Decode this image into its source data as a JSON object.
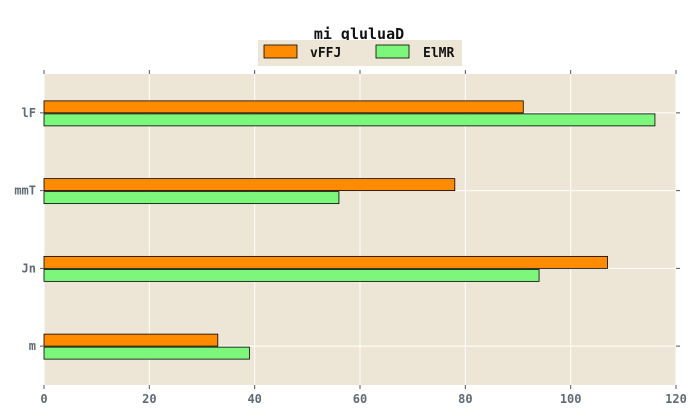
{
  "chart_data": {
    "type": "bar",
    "orientation": "horizontal",
    "title": "mi qluluaD",
    "xlabel": "",
    "ylabel": "",
    "xlim": [
      0,
      120
    ],
    "x_ticks": [
      0,
      20,
      40,
      60,
      80,
      100,
      120
    ],
    "categories": [
      "lF",
      "mmT",
      "Jn",
      "m"
    ],
    "series": [
      {
        "name": "vFFJ",
        "color": "#ff8c00",
        "values": [
          91,
          78,
          107,
          33
        ]
      },
      {
        "name": "ElMR",
        "color": "#7cf77c",
        "values": [
          116,
          56,
          94,
          39
        ]
      }
    ],
    "grid": true,
    "legend_position": "top-center",
    "background_color": "#ede6d6"
  }
}
